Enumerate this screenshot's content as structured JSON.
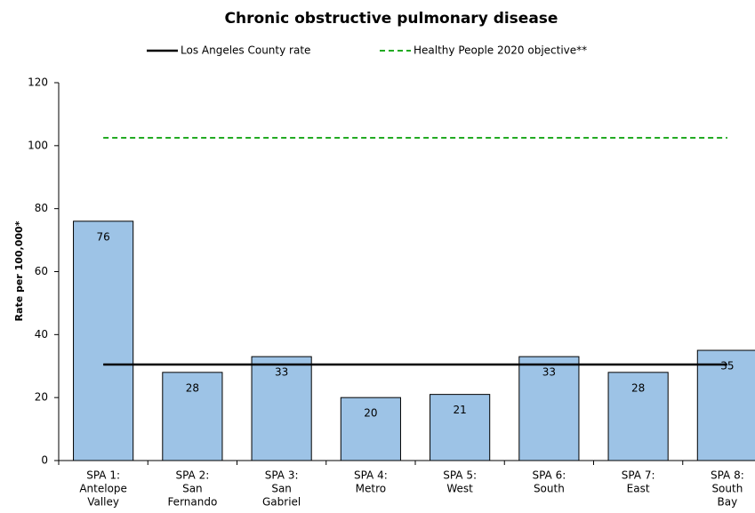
{
  "chart_data": {
    "type": "bar",
    "title": "Chronic obstructive pulmonary disease",
    "y_label": "Rate per 100,000*",
    "categories": [
      [
        "SPA 1:",
        "Antelope",
        "Valley"
      ],
      [
        "SPA 2:",
        "San",
        "Fernando"
      ],
      [
        "SPA 3:",
        "San",
        "Gabriel"
      ],
      [
        "SPA 4:",
        "Metro"
      ],
      [
        "SPA 5:",
        "West"
      ],
      [
        "SPA 6:",
        "South"
      ],
      [
        "SPA 7:",
        "East"
      ],
      [
        "SPA 8:",
        "South",
        "Bay"
      ]
    ],
    "values": [
      76,
      28,
      33,
      20,
      21,
      33,
      28,
      35
    ],
    "color": "#9dc3e6",
    "ylim": [
      0,
      120
    ],
    "yticks": [
      0,
      20,
      40,
      60,
      80,
      100,
      120
    ],
    "reference_lines": [
      {
        "name": "Los Angeles County rate",
        "value": 30.5,
        "color": "#000000",
        "dashed": false
      },
      {
        "name": "Healthy People 2020 objective**",
        "value": 102.5,
        "color": "#22aa22",
        "dashed": true
      }
    ]
  }
}
